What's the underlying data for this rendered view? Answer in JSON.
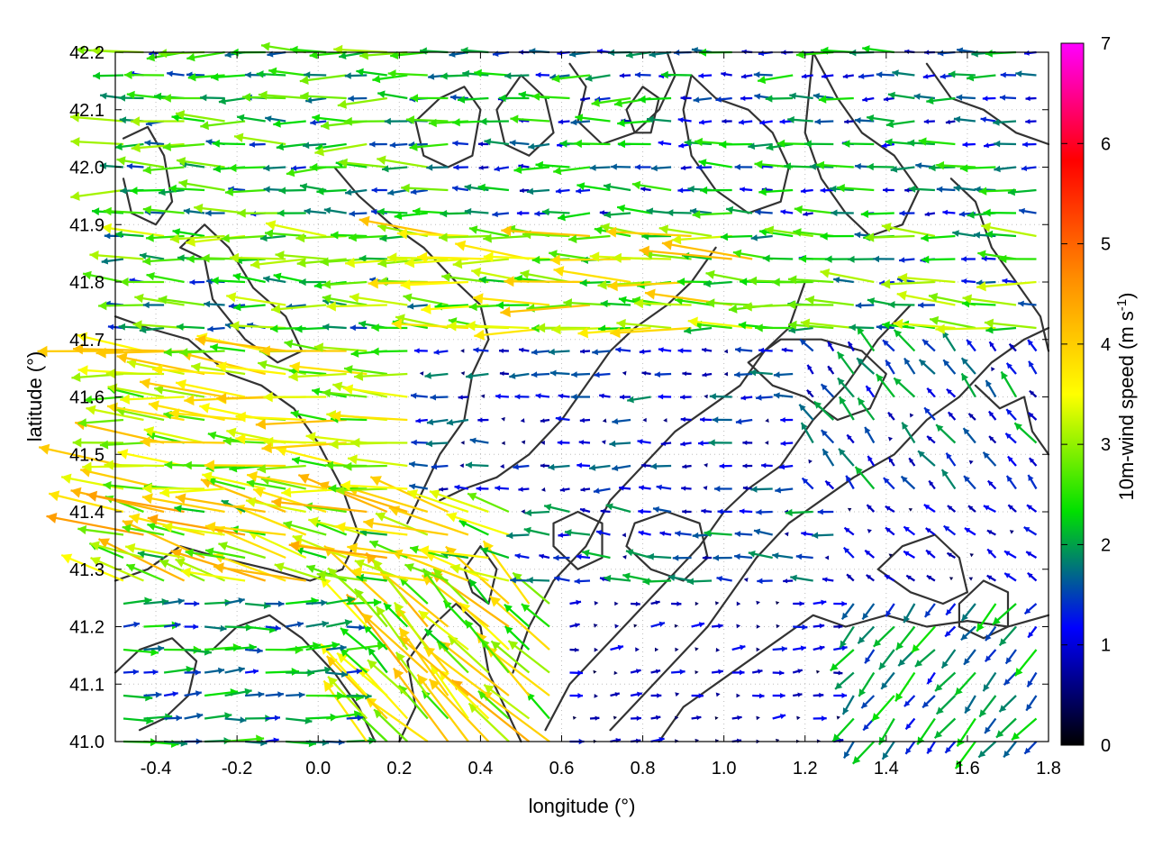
{
  "chart_data": {
    "type": "vector-field",
    "xlabel": "longitude (°)",
    "ylabel": "latitude (°)",
    "colorbar_label": "10m-wind speed (m s",
    "colorbar_label_sup": "-1",
    "colorbar_label_end": ")",
    "xlim": [
      -0.5,
      1.8
    ],
    "ylim": [
      41.0,
      42.2
    ],
    "x_ticks": [
      "-0.4",
      "-0.2",
      "0.0",
      "0.2",
      "0.4",
      "0.6",
      "0.8",
      "1.0",
      "1.2",
      "1.4",
      "1.6",
      "1.8"
    ],
    "y_ticks": [
      "41.0",
      "41.1",
      "41.2",
      "41.3",
      "41.4",
      "41.5",
      "41.6",
      "41.7",
      "41.8",
      "41.9",
      "42.0",
      "42.1",
      "42.2"
    ],
    "colorbar_ticks": [
      "0",
      "1",
      "2",
      "3",
      "4",
      "5",
      "6",
      "7"
    ],
    "colorbar_range": [
      0,
      7
    ],
    "colorbar_stops": [
      "#000000",
      "#0000ff",
      "#00e000",
      "#ffff00",
      "#ff8c00",
      "#ff0000",
      "#ff00ff"
    ],
    "grid": true,
    "contours": [
      [
        [
          -0.48,
          42.05
        ],
        [
          -0.42,
          42.07
        ],
        [
          -0.38,
          42.02
        ],
        [
          -0.36,
          41.94
        ],
        [
          -0.4,
          41.9
        ],
        [
          -0.46,
          41.92
        ],
        [
          -0.48,
          41.98
        ]
      ],
      [
        [
          -0.34,
          41.86
        ],
        [
          -0.28,
          41.84
        ],
        [
          -0.26,
          41.77
        ],
        [
          -0.18,
          41.7
        ],
        [
          -0.1,
          41.66
        ],
        [
          -0.04,
          41.68
        ],
        [
          -0.08,
          41.74
        ],
        [
          -0.16,
          41.79
        ],
        [
          -0.22,
          41.86
        ],
        [
          -0.28,
          41.9
        ],
        [
          -0.34,
          41.86
        ]
      ],
      [
        [
          -0.5,
          41.74
        ],
        [
          -0.42,
          41.72
        ],
        [
          -0.32,
          41.7
        ],
        [
          -0.22,
          41.64
        ],
        [
          -0.14,
          41.62
        ],
        [
          -0.06,
          41.58
        ],
        [
          0.0,
          41.52
        ],
        [
          0.06,
          41.44
        ],
        [
          0.1,
          41.36
        ],
        [
          0.06,
          41.3
        ],
        [
          -0.02,
          41.28
        ],
        [
          -0.12,
          41.3
        ],
        [
          -0.24,
          41.32
        ],
        [
          -0.34,
          41.34
        ],
        [
          -0.42,
          41.3
        ],
        [
          -0.5,
          41.28
        ]
      ],
      [
        [
          0.04,
          42.0
        ],
        [
          0.1,
          41.95
        ],
        [
          0.18,
          41.9
        ],
        [
          0.26,
          41.86
        ],
        [
          0.34,
          41.8
        ],
        [
          0.4,
          41.76
        ],
        [
          0.42,
          41.7
        ],
        [
          0.38,
          41.64
        ],
        [
          0.36,
          41.56
        ],
        [
          0.3,
          41.5
        ],
        [
          0.26,
          41.44
        ],
        [
          0.22,
          41.38
        ]
      ],
      [
        [
          0.3,
          41.42
        ],
        [
          0.36,
          41.44
        ],
        [
          0.44,
          41.46
        ],
        [
          0.52,
          41.5
        ],
        [
          0.6,
          41.56
        ],
        [
          0.66,
          41.62
        ],
        [
          0.72,
          41.68
        ],
        [
          0.78,
          41.72
        ],
        [
          0.86,
          41.76
        ],
        [
          0.92,
          41.8
        ],
        [
          0.98,
          41.86
        ]
      ],
      [
        [
          0.48,
          41.12
        ],
        [
          0.52,
          41.2
        ],
        [
          0.58,
          41.28
        ],
        [
          0.66,
          41.34
        ],
        [
          0.72,
          41.42
        ],
        [
          0.8,
          41.48
        ],
        [
          0.88,
          41.54
        ],
        [
          0.96,
          41.58
        ],
        [
          1.04,
          41.62
        ],
        [
          1.1,
          41.68
        ],
        [
          1.16,
          41.72
        ],
        [
          1.2,
          41.8
        ]
      ],
      [
        [
          0.56,
          41.02
        ],
        [
          0.62,
          41.1
        ],
        [
          0.7,
          41.16
        ],
        [
          0.78,
          41.22
        ],
        [
          0.86,
          41.28
        ],
        [
          0.94,
          41.34
        ],
        [
          1.0,
          41.4
        ],
        [
          1.06,
          41.44
        ],
        [
          1.14,
          41.48
        ],
        [
          1.22,
          41.56
        ],
        [
          1.3,
          41.62
        ],
        [
          1.38,
          41.7
        ],
        [
          1.46,
          41.76
        ]
      ],
      [
        [
          0.72,
          41.02
        ],
        [
          0.8,
          41.08
        ],
        [
          0.88,
          41.14
        ],
        [
          0.96,
          41.2
        ],
        [
          1.02,
          41.26
        ],
        [
          1.08,
          41.32
        ],
        [
          1.16,
          41.38
        ],
        [
          1.24,
          41.42
        ],
        [
          1.32,
          41.46
        ],
        [
          1.42,
          41.5
        ],
        [
          1.5,
          41.56
        ],
        [
          1.58,
          41.6
        ],
        [
          1.66,
          41.66
        ],
        [
          1.74,
          41.7
        ],
        [
          1.8,
          41.72
        ]
      ],
      [
        [
          0.84,
          41.0
        ],
        [
          0.9,
          41.06
        ],
        [
          0.98,
          41.1
        ],
        [
          1.06,
          41.14
        ],
        [
          1.14,
          41.18
        ],
        [
          1.22,
          41.22
        ],
        [
          1.3,
          41.2
        ],
        [
          1.4,
          41.22
        ],
        [
          1.5,
          41.2
        ],
        [
          1.6,
          41.21
        ],
        [
          1.7,
          41.2
        ],
        [
          1.8,
          41.22
        ]
      ],
      [
        [
          0.2,
          41.0
        ],
        [
          0.24,
          41.06
        ],
        [
          0.22,
          41.14
        ],
        [
          0.28,
          41.2
        ],
        [
          0.34,
          41.24
        ],
        [
          0.4,
          41.2
        ],
        [
          0.42,
          41.12
        ],
        [
          0.46,
          41.06
        ],
        [
          0.5,
          41.0
        ]
      ],
      [
        [
          0.62,
          42.18
        ],
        [
          0.66,
          42.14
        ],
        [
          0.64,
          42.08
        ],
        [
          0.7,
          42.04
        ],
        [
          0.78,
          42.06
        ],
        [
          0.84,
          42.1
        ],
        [
          0.88,
          42.16
        ],
        [
          0.86,
          42.2
        ]
      ],
      [
        [
          0.76,
          42.1
        ],
        [
          0.8,
          42.14
        ],
        [
          0.84,
          42.12
        ],
        [
          0.82,
          42.06
        ],
        [
          0.78,
          42.06
        ],
        [
          0.76,
          42.1
        ]
      ],
      [
        [
          0.5,
          42.16
        ],
        [
          0.56,
          42.12
        ],
        [
          0.58,
          42.06
        ],
        [
          0.52,
          42.02
        ],
        [
          0.46,
          42.04
        ],
        [
          0.44,
          42.1
        ],
        [
          0.5,
          42.16
        ]
      ],
      [
        [
          0.24,
          42.08
        ],
        [
          0.3,
          42.12
        ],
        [
          0.36,
          42.14
        ],
        [
          0.4,
          42.1
        ],
        [
          0.38,
          42.02
        ],
        [
          0.32,
          42.0
        ],
        [
          0.26,
          42.02
        ],
        [
          0.24,
          42.08
        ]
      ],
      [
        [
          0.92,
          42.16
        ],
        [
          0.98,
          42.12
        ],
        [
          1.06,
          42.1
        ],
        [
          1.12,
          42.06
        ],
        [
          1.16,
          42.0
        ],
        [
          1.14,
          41.94
        ],
        [
          1.06,
          41.92
        ],
        [
          0.98,
          41.96
        ],
        [
          0.92,
          42.02
        ],
        [
          0.9,
          42.1
        ],
        [
          0.92,
          42.16
        ]
      ],
      [
        [
          1.22,
          42.2
        ],
        [
          1.28,
          42.12
        ],
        [
          1.34,
          42.06
        ],
        [
          1.42,
          42.02
        ],
        [
          1.48,
          41.96
        ],
        [
          1.44,
          41.9
        ],
        [
          1.36,
          41.88
        ],
        [
          1.3,
          41.92
        ],
        [
          1.24,
          41.98
        ],
        [
          1.2,
          42.06
        ],
        [
          1.22,
          42.2
        ]
      ],
      [
        [
          1.5,
          42.18
        ],
        [
          1.56,
          42.12
        ],
        [
          1.64,
          42.1
        ],
        [
          1.72,
          42.06
        ],
        [
          1.8,
          42.04
        ]
      ],
      [
        [
          1.56,
          41.98
        ],
        [
          1.62,
          41.94
        ],
        [
          1.66,
          41.86
        ],
        [
          1.72,
          41.8
        ],
        [
          1.78,
          41.74
        ],
        [
          1.8,
          41.68
        ]
      ],
      [
        [
          1.06,
          41.66
        ],
        [
          1.12,
          41.62
        ],
        [
          1.2,
          41.6
        ],
        [
          1.28,
          41.56
        ],
        [
          1.36,
          41.58
        ],
        [
          1.4,
          41.64
        ],
        [
          1.34,
          41.68
        ],
        [
          1.24,
          41.7
        ],
        [
          1.14,
          41.7
        ],
        [
          1.06,
          41.66
        ]
      ],
      [
        [
          0.76,
          41.34
        ],
        [
          0.82,
          41.3
        ],
        [
          0.9,
          41.28
        ],
        [
          0.96,
          41.32
        ],
        [
          0.94,
          41.38
        ],
        [
          0.86,
          41.4
        ],
        [
          0.78,
          41.38
        ],
        [
          0.76,
          41.34
        ]
      ],
      [
        [
          0.58,
          41.34
        ],
        [
          0.64,
          41.3
        ],
        [
          0.7,
          41.32
        ],
        [
          0.7,
          41.38
        ],
        [
          0.64,
          41.4
        ],
        [
          0.58,
          41.38
        ],
        [
          0.58,
          41.34
        ]
      ],
      [
        [
          1.58,
          41.24
        ],
        [
          1.64,
          41.28
        ],
        [
          1.7,
          41.26
        ],
        [
          1.7,
          41.2
        ],
        [
          1.64,
          41.18
        ],
        [
          1.58,
          41.2
        ],
        [
          1.58,
          41.24
        ]
      ],
      [
        [
          -0.26,
          41.16
        ],
        [
          -0.2,
          41.2
        ],
        [
          -0.12,
          41.22
        ],
        [
          -0.04,
          41.18
        ],
        [
          0.04,
          41.12
        ],
        [
          0.1,
          41.06
        ],
        [
          0.14,
          41.0
        ]
      ],
      [
        [
          -0.5,
          41.12
        ],
        [
          -0.44,
          41.16
        ],
        [
          -0.36,
          41.18
        ],
        [
          -0.3,
          41.14
        ],
        [
          -0.32,
          41.08
        ],
        [
          -0.38,
          41.04
        ],
        [
          -0.44,
          41.02
        ]
      ],
      [
        [
          0.36,
          41.3
        ],
        [
          0.4,
          41.34
        ],
        [
          0.44,
          41.3
        ],
        [
          0.42,
          41.24
        ],
        [
          0.38,
          41.26
        ],
        [
          0.36,
          41.3
        ]
      ],
      [
        [
          1.38,
          41.3
        ],
        [
          1.44,
          41.34
        ],
        [
          1.52,
          41.36
        ],
        [
          1.58,
          41.32
        ],
        [
          1.6,
          41.26
        ],
        [
          1.54,
          41.24
        ],
        [
          1.46,
          41.26
        ],
        [
          1.38,
          41.3
        ]
      ],
      [
        [
          1.62,
          41.62
        ],
        [
          1.68,
          41.58
        ],
        [
          1.74,
          41.6
        ],
        [
          1.76,
          41.54
        ],
        [
          1.8,
          41.5
        ]
      ]
    ]
  }
}
